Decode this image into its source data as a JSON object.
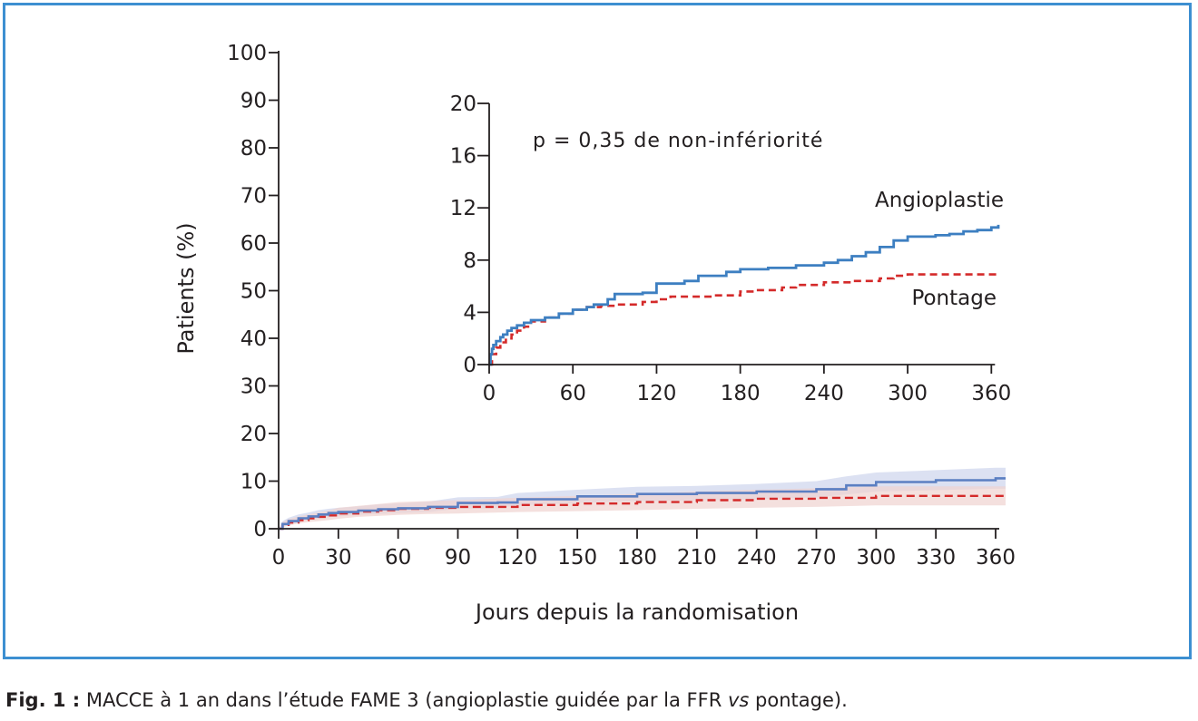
{
  "chart_data": [
    {
      "type": "line",
      "xlabel": "Jours depuis la randomisation",
      "ylabel": "Patients (%)",
      "xlim": [
        0,
        360
      ],
      "ylim": [
        0,
        100
      ],
      "x_ticks": [
        0,
        30,
        60,
        90,
        120,
        150,
        180,
        210,
        240,
        270,
        300,
        330,
        360
      ],
      "y_ticks": [
        0,
        10,
        20,
        30,
        40,
        50,
        60,
        70,
        80,
        90,
        100
      ],
      "grid": false,
      "confidence_bands": true,
      "colors": {
        "angioplastie": "#3d7fc1",
        "angioplastie_band": "#d6dcf0",
        "pontage": "#d42a2a",
        "pontage_band": "#f0d3d0"
      },
      "series": [
        {
          "style": "solid",
          "x": [
            0,
            2,
            5,
            10,
            15,
            20,
            25,
            30,
            40,
            50,
            60,
            75,
            90,
            110,
            120,
            150,
            180,
            210,
            240,
            270,
            285,
            300,
            330,
            360
          ],
          "y": [
            0,
            1.0,
            1.6,
            2.2,
            2.6,
            3.0,
            3.3,
            3.5,
            3.8,
            4.1,
            4.3,
            4.6,
            5.4,
            5.5,
            6.2,
            6.8,
            7.3,
            7.5,
            7.8,
            8.3,
            9.1,
            9.8,
            10.2,
            10.6
          ],
          "band_lower": [
            0,
            0.4,
            0.9,
            1.4,
            1.8,
            2.1,
            2.4,
            2.6,
            2.9,
            3.1,
            3.3,
            3.5,
            4.2,
            4.3,
            4.9,
            5.4,
            5.8,
            6.0,
            6.2,
            6.6,
            7.2,
            7.8,
            8.1,
            8.4
          ],
          "band_upper": [
            0,
            1.6,
            2.3,
            3.0,
            3.4,
            3.9,
            4.2,
            4.4,
            4.7,
            5.1,
            5.3,
            5.7,
            6.6,
            6.7,
            7.5,
            8.2,
            8.8,
            9.0,
            9.4,
            10.0,
            11.0,
            11.8,
            12.3,
            12.8
          ]
        },
        {
          "style": "dashed",
          "x": [
            0,
            2,
            5,
            10,
            15,
            20,
            25,
            30,
            40,
            50,
            60,
            75,
            90,
            120,
            150,
            180,
            210,
            240,
            270,
            300,
            330,
            360
          ],
          "y": [
            0,
            0.8,
            1.3,
            1.8,
            2.2,
            2.5,
            2.8,
            3.2,
            3.6,
            3.9,
            4.2,
            4.4,
            4.6,
            5.0,
            5.3,
            5.6,
            6.0,
            6.3,
            6.5,
            6.9,
            6.9,
            6.9
          ],
          "band_lower": [
            0,
            0.3,
            0.7,
            1.1,
            1.4,
            1.6,
            1.8,
            2.1,
            2.5,
            2.7,
            2.9,
            3.1,
            3.2,
            3.5,
            3.7,
            3.9,
            4.2,
            4.4,
            4.6,
            4.9,
            4.9,
            4.9
          ],
          "band_upper": [
            0,
            1.4,
            2.0,
            2.6,
            3.0,
            3.4,
            3.8,
            4.4,
            4.8,
            5.2,
            5.6,
            5.8,
            6.0,
            6.5,
            6.9,
            7.3,
            7.8,
            8.2,
            8.5,
            8.9,
            8.9,
            8.9
          ]
        }
      ]
    },
    {
      "type": "line",
      "inset": true,
      "xlim": [
        0,
        365
      ],
      "ylim": [
        0,
        20
      ],
      "x_ticks": [
        0,
        60,
        120,
        180,
        240,
        300,
        360
      ],
      "y_ticks": [
        0,
        4,
        8,
        12,
        16,
        20
      ],
      "annotation": "p = 0,35 de non-infériorité",
      "series": [
        {
          "name": "Angioplastie",
          "style": "solid",
          "x": [
            0,
            1,
            2,
            3,
            5,
            8,
            10,
            13,
            16,
            20,
            25,
            30,
            40,
            50,
            60,
            70,
            75,
            85,
            90,
            110,
            120,
            140,
            150,
            170,
            180,
            200,
            220,
            240,
            250,
            260,
            270,
            280,
            290,
            300,
            320,
            330,
            340,
            350,
            360,
            365
          ],
          "y": [
            0,
            0.8,
            1.2,
            1.5,
            1.8,
            2.1,
            2.3,
            2.6,
            2.8,
            3.0,
            3.2,
            3.4,
            3.6,
            3.9,
            4.2,
            4.4,
            4.6,
            5.0,
            5.4,
            5.5,
            6.2,
            6.4,
            6.8,
            7.1,
            7.3,
            7.4,
            7.6,
            7.8,
            8.0,
            8.3,
            8.6,
            9.0,
            9.5,
            9.8,
            9.9,
            10.0,
            10.2,
            10.3,
            10.5,
            10.7
          ]
        },
        {
          "name": "Pontage",
          "style": "dashed",
          "x": [
            0,
            2,
            5,
            8,
            12,
            16,
            20,
            25,
            30,
            40,
            50,
            60,
            70,
            80,
            90,
            110,
            120,
            130,
            160,
            180,
            190,
            210,
            220,
            240,
            260,
            280,
            290,
            300,
            330,
            365
          ],
          "y": [
            0,
            0.8,
            1.3,
            1.7,
            2.0,
            2.3,
            2.6,
            2.9,
            3.3,
            3.6,
            3.9,
            4.2,
            4.4,
            4.5,
            4.6,
            4.8,
            5.0,
            5.2,
            5.3,
            5.6,
            5.7,
            5.9,
            6.1,
            6.3,
            6.4,
            6.6,
            6.8,
            6.9,
            6.9,
            6.9
          ]
        }
      ]
    }
  ],
  "caption": {
    "prefix": "Fig. 1 :",
    "text_before": " MACCE à 1 an dans l’étude FAME 3 (angioplastie guidée par la FFR ",
    "italic": "vs",
    "text_after": " pontage)."
  }
}
